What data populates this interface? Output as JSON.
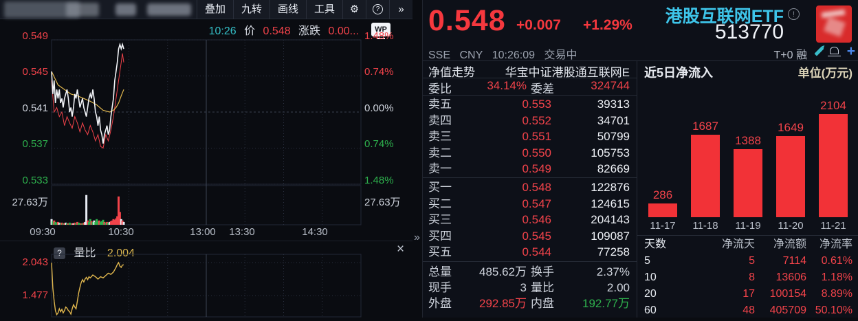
{
  "colors": {
    "red": "#f2434a",
    "green": "#2eb14d",
    "cyan": "#3ec5ea",
    "yellow": "#dcb74f",
    "bar_red": "#f23237",
    "price_line": "#f2f4f8",
    "avg_line": "#e2b84e"
  },
  "toolbar": {
    "items": [
      "叠加",
      "九转",
      "画线",
      "工具"
    ],
    "gear_icon": "⚙",
    "help_icon": "?",
    "more_icon": "»"
  },
  "chart_header": {
    "time": "10:26",
    "price_label": "价",
    "price": "0.548",
    "change_label": "涨跌",
    "change": "0.00...",
    "wp": "WP"
  },
  "main_axes": {
    "price_ticks": [
      {
        "t": "0.549",
        "c": "red"
      },
      {
        "t": "0.545",
        "c": "red"
      },
      {
        "t": "0.541",
        "c": "white"
      },
      {
        "t": "0.537",
        "c": "green"
      },
      {
        "t": "0.533",
        "c": "green"
      }
    ],
    "pct_ticks": [
      {
        "t": "1.48%",
        "c": "red"
      },
      {
        "t": "0.74%",
        "c": "red"
      },
      {
        "t": "0.00%",
        "c": "white"
      },
      {
        "t": "0.74%",
        "c": "green"
      },
      {
        "t": "1.48%",
        "c": "green"
      }
    ],
    "vol_tick": "27.63万",
    "x_ticks": [
      "09:30",
      "10:30",
      "13:00",
      "13:30",
      "14:30"
    ]
  },
  "subchart": {
    "help": "?",
    "label": "量比",
    "value": "2.004",
    "ticks": [
      "2.043",
      "1.477"
    ],
    "close": "×"
  },
  "quote": {
    "price": "0.548",
    "change": "+0.007",
    "pct": "+1.29%",
    "name": "港股互联网ETF",
    "info_glyph": "!",
    "code": "513770",
    "exchange": "SSE",
    "currency": "CNY",
    "time": "10:26:09",
    "status": "交易中",
    "tags": "T+0 融"
  },
  "order_book": {
    "nav_label": "净值走势",
    "fund_name": "华宝中证港股通互联网E",
    "ratio_label": "委比",
    "ratio": "34.14%",
    "diff_label": "委差",
    "diff": "324744",
    "sells": [
      [
        "卖五",
        "0.553",
        "39313"
      ],
      [
        "卖四",
        "0.552",
        "34701"
      ],
      [
        "卖三",
        "0.551",
        "50799"
      ],
      [
        "卖二",
        "0.550",
        "105753"
      ],
      [
        "卖一",
        "0.549",
        "82669"
      ]
    ],
    "buys": [
      [
        "买一",
        "0.548",
        "122876"
      ],
      [
        "买二",
        "0.547",
        "124615"
      ],
      [
        "买三",
        "0.546",
        "204143"
      ],
      [
        "买四",
        "0.545",
        "109087"
      ],
      [
        "买五",
        "0.544",
        "77258"
      ]
    ],
    "stats": [
      {
        "l1": "总量",
        "v1": "485.62万",
        "c1": "white",
        "l2": "换手",
        "v2": "2.37%",
        "c2": "white"
      },
      {
        "l1": "现手",
        "v1": "3",
        "c1": "white",
        "l2": "量比",
        "v2": "2.00",
        "c2": "white"
      },
      {
        "l1": "外盘",
        "v1": "292.85万",
        "c1": "red",
        "l2": "内盘",
        "v2": "192.77万",
        "c2": "green"
      }
    ]
  },
  "flow": {
    "title": "近5日净流入",
    "unit": "单位(万元)",
    "table_headers": [
      "天数",
      "净流天",
      "净流额",
      "净流率"
    ],
    "table_rows": [
      [
        "5",
        "5",
        "7114",
        "0.61%"
      ],
      [
        "10",
        "8",
        "13606",
        "1.18%"
      ],
      [
        "20",
        "17",
        "100154",
        "8.89%"
      ],
      [
        "60",
        "48",
        "405709",
        "50.10%"
      ]
    ]
  },
  "chart_data": [
    {
      "type": "line",
      "title": "intraday price 09:30-15:00",
      "x_unit": "trading minute 0-240",
      "prev_close": 0.541,
      "x_ticks": [
        "09:30",
        "10:30",
        "13:00",
        "13:30",
        "14:30"
      ],
      "y_ticks_price": [
        0.549,
        0.545,
        0.541,
        0.537,
        0.533
      ],
      "y_ticks_pct": [
        "1.48%",
        "0.74%",
        "0.00%",
        "0.74%",
        "1.48%"
      ],
      "series": [
        {
          "name": "price-white",
          "points": [
            [
              0,
              0.5455
            ],
            [
              1,
              0.543
            ],
            [
              2,
              0.5445
            ],
            [
              3,
              0.542
            ],
            [
              4,
              0.5435
            ],
            [
              5,
              0.5425
            ],
            [
              6,
              0.5435
            ],
            [
              7,
              0.542
            ],
            [
              8,
              0.5425
            ],
            [
              9,
              0.5415
            ],
            [
              10,
              0.5425
            ],
            [
              11,
              0.543
            ],
            [
              12,
              0.5435
            ],
            [
              13,
              0.5425
            ],
            [
              14,
              0.541
            ],
            [
              15,
              0.5415
            ],
            [
              16,
              0.5405
            ],
            [
              17,
              0.5415
            ],
            [
              18,
              0.543
            ],
            [
              19,
              0.5425
            ],
            [
              20,
              0.5435
            ],
            [
              21,
              0.5425
            ],
            [
              22,
              0.5415
            ],
            [
              23,
              0.542
            ],
            [
              24,
              0.5425
            ],
            [
              25,
              0.5415
            ],
            [
              26,
              0.541
            ],
            [
              27,
              0.5405
            ],
            [
              28,
              0.5415
            ],
            [
              29,
              0.5425
            ],
            [
              30,
              0.543
            ],
            [
              31,
              0.5425
            ],
            [
              32,
              0.5435
            ],
            [
              33,
              0.5425
            ],
            [
              34,
              0.541
            ],
            [
              35,
              0.5405
            ],
            [
              36,
              0.5395
            ],
            [
              37,
              0.5405
            ],
            [
              38,
              0.539
            ],
            [
              39,
              0.5385
            ],
            [
              40,
              0.5375
            ],
            [
              41,
              0.5385
            ],
            [
              42,
              0.539
            ],
            [
              43,
              0.5395
            ],
            [
              44,
              0.5385
            ],
            [
              45,
              0.539
            ],
            [
              46,
              0.5405
            ],
            [
              47,
              0.5415
            ],
            [
              48,
              0.5425
            ],
            [
              49,
              0.5445
            ],
            [
              50,
              0.5455
            ],
            [
              51,
              0.5465
            ],
            [
              52,
              0.548
            ],
            [
              53,
              0.5485
            ],
            [
              54,
              0.548
            ],
            [
              55,
              0.5485
            ],
            [
              56,
              0.548
            ]
          ]
        },
        {
          "name": "avg-yellow",
          "points": [
            [
              0,
              0.5455
            ],
            [
              5,
              0.544
            ],
            [
              10,
              0.5435
            ],
            [
              15,
              0.543
            ],
            [
              20,
              0.5428
            ],
            [
              25,
              0.5425
            ],
            [
              30,
              0.5422
            ],
            [
              35,
              0.5418
            ],
            [
              40,
              0.5412
            ],
            [
              45,
              0.541
            ],
            [
              48,
              0.5412
            ],
            [
              50,
              0.5415
            ],
            [
              52,
              0.542
            ],
            [
              54,
              0.5428
            ],
            [
              56,
              0.5435
            ]
          ]
        },
        {
          "name": "secondary-red",
          "points": [
            [
              0,
              0.5445
            ],
            [
              2,
              0.541
            ],
            [
              4,
              0.5415
            ],
            [
              6,
              0.5405
            ],
            [
              8,
              0.541
            ],
            [
              10,
              0.5395
            ],
            [
              12,
              0.5405
            ],
            [
              14,
              0.5398
            ],
            [
              16,
              0.5392
            ],
            [
              18,
              0.5405
            ],
            [
              20,
              0.5398
            ],
            [
              22,
              0.5388
            ],
            [
              24,
              0.5398
            ],
            [
              26,
              0.539
            ],
            [
              28,
              0.5385
            ],
            [
              30,
              0.5395
            ],
            [
              32,
              0.5388
            ],
            [
              34,
              0.5378
            ],
            [
              36,
              0.5385
            ],
            [
              38,
              0.5372
            ],
            [
              40,
              0.537
            ],
            [
              42,
              0.5385
            ],
            [
              44,
              0.5378
            ],
            [
              46,
              0.539
            ],
            [
              48,
              0.5405
            ],
            [
              50,
              0.5425
            ],
            [
              52,
              0.5445
            ],
            [
              54,
              0.5465
            ],
            [
              55,
              0.5475
            ],
            [
              56,
              0.5465
            ]
          ]
        }
      ]
    },
    {
      "type": "bar",
      "title": "intraday volume",
      "y_tick": "27.63万",
      "y_max_wan": 55.26,
      "bars": [
        [
          0,
          8,
          "w"
        ],
        [
          1,
          5,
          "g"
        ],
        [
          2,
          6,
          "r"
        ],
        [
          3,
          4,
          "g"
        ],
        [
          4,
          3,
          "g"
        ],
        [
          5,
          4,
          "r"
        ],
        [
          6,
          3,
          "w"
        ],
        [
          7,
          2,
          "g"
        ],
        [
          8,
          3,
          "r"
        ],
        [
          9,
          2,
          "g"
        ],
        [
          10,
          2,
          "r"
        ],
        [
          11,
          3,
          "w"
        ],
        [
          12,
          2,
          "g"
        ],
        [
          13,
          2,
          "r"
        ],
        [
          14,
          3,
          "g"
        ],
        [
          15,
          2,
          "g"
        ],
        [
          16,
          2,
          "r"
        ],
        [
          17,
          2,
          "w"
        ],
        [
          18,
          3,
          "r"
        ],
        [
          19,
          2,
          "g"
        ],
        [
          20,
          4,
          "r"
        ],
        [
          21,
          3,
          "g"
        ],
        [
          22,
          2,
          "g"
        ],
        [
          23,
          2,
          "r"
        ],
        [
          24,
          2,
          "g"
        ],
        [
          25,
          3,
          "r"
        ],
        [
          26,
          4,
          "w"
        ],
        [
          27,
          42,
          "w"
        ],
        [
          28,
          6,
          "r"
        ],
        [
          29,
          4,
          "g"
        ],
        [
          30,
          8,
          "g"
        ],
        [
          31,
          5,
          "r"
        ],
        [
          32,
          4,
          "g"
        ],
        [
          33,
          6,
          "w"
        ],
        [
          34,
          4,
          "g"
        ],
        [
          35,
          8,
          "g"
        ],
        [
          36,
          5,
          "g"
        ],
        [
          37,
          6,
          "r"
        ],
        [
          38,
          4,
          "g"
        ],
        [
          39,
          5,
          "g"
        ],
        [
          40,
          7,
          "g"
        ],
        [
          41,
          4,
          "r"
        ],
        [
          42,
          3,
          "g"
        ],
        [
          43,
          4,
          "r"
        ],
        [
          44,
          3,
          "g"
        ],
        [
          45,
          4,
          "w"
        ],
        [
          46,
          5,
          "r"
        ],
        [
          47,
          6,
          "r"
        ],
        [
          48,
          8,
          "r"
        ],
        [
          49,
          7,
          "r"
        ],
        [
          50,
          9,
          "r"
        ],
        [
          51,
          12,
          "r"
        ],
        [
          52,
          40,
          "r"
        ],
        [
          53,
          18,
          "r"
        ],
        [
          54,
          8,
          "w"
        ],
        [
          55,
          6,
          "r"
        ],
        [
          56,
          4,
          "w"
        ]
      ]
    },
    {
      "type": "line",
      "title": "量比",
      "current": 2.004,
      "y_ticks": [
        2.043,
        1.477
      ],
      "points": [
        [
          0,
          2.04
        ],
        [
          1,
          1.6
        ],
        [
          2,
          1.38
        ],
        [
          3,
          1.22
        ],
        [
          4,
          1.15
        ],
        [
          5,
          1.18
        ],
        [
          6,
          1.25
        ],
        [
          7,
          1.2
        ],
        [
          8,
          1.24
        ],
        [
          9,
          1.18
        ],
        [
          10,
          1.22
        ],
        [
          11,
          1.28
        ],
        [
          12,
          1.26
        ],
        [
          13,
          1.22
        ],
        [
          14,
          1.2
        ],
        [
          15,
          1.16
        ],
        [
          16,
          1.25
        ],
        [
          17,
          1.32
        ],
        [
          18,
          1.28
        ],
        [
          19,
          1.25
        ],
        [
          20,
          1.38
        ],
        [
          21,
          1.52
        ],
        [
          22,
          1.62
        ],
        [
          23,
          1.7
        ],
        [
          24,
          1.75
        ],
        [
          25,
          1.71
        ],
        [
          26,
          1.76
        ],
        [
          27,
          1.79
        ],
        [
          28,
          1.75
        ],
        [
          29,
          1.8
        ],
        [
          30,
          1.78
        ],
        [
          32,
          1.83
        ],
        [
          34,
          1.8
        ],
        [
          36,
          1.76
        ],
        [
          38,
          1.8
        ],
        [
          40,
          1.78
        ],
        [
          42,
          1.82
        ],
        [
          44,
          1.86
        ],
        [
          46,
          1.84
        ],
        [
          48,
          1.88
        ],
        [
          50,
          1.96
        ],
        [
          51,
          2.01
        ],
        [
          52,
          2.043
        ],
        [
          53,
          1.98
        ],
        [
          54,
          1.96
        ],
        [
          55,
          2.0
        ],
        [
          56,
          2.004
        ]
      ]
    },
    {
      "type": "bar",
      "title": "近5日净流入",
      "unit": "万元",
      "categories": [
        "11-17",
        "11-18",
        "11-19",
        "11-20",
        "11-21"
      ],
      "values": [
        286,
        1687,
        1388,
        1649,
        2104
      ]
    }
  ]
}
